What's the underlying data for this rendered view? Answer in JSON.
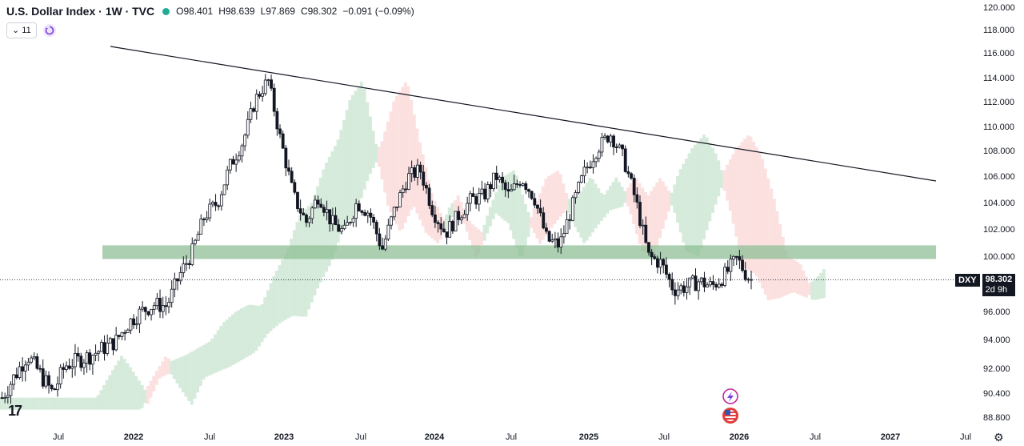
{
  "header": {
    "title": "U.S. Dollar Index · 1W · TVC",
    "open_label": "O",
    "open": "98.401",
    "high_label": "H",
    "high": "98.639",
    "low_label": "L",
    "low": "97.869",
    "close_label": "C",
    "close": "98.302",
    "change": "−0.091 (−0.09%)",
    "status_color": "#22ab94"
  },
  "toolbar": {
    "indicator_count": "11",
    "chevron_icon": "chevron-down-icon",
    "sync_icon": "sync-icon"
  },
  "price_tag": {
    "symbol": "DXY",
    "price": "98.302",
    "countdown": "2d 9h"
  },
  "logo": {
    "text": "17"
  },
  "settings_icon": "gear-icon",
  "chart_data": {
    "type": "candlestick",
    "interval": "1W",
    "y_axis_labels": [
      "120.000",
      "118.000",
      "116.000",
      "114.000",
      "112.000",
      "110.000",
      "108.000",
      "106.000",
      "104.000",
      "102.000",
      "100.000",
      "96.000",
      "94.000",
      "92.000",
      "90.400",
      "88.800"
    ],
    "x_axis_labels": [
      "Jul",
      "2022",
      "Jul",
      "2023",
      "Jul",
      "2024",
      "Jul",
      "2025",
      "Jul",
      "2026",
      "Jul",
      "2027",
      "Jul"
    ],
    "last_price": 98.302,
    "colors": {
      "up": "#131722",
      "down": "#131722",
      "cloud_bull": "#cfe8d5",
      "cloud_bear": "#fbdcdc",
      "zone": "#8fbf96"
    },
    "support_zone": {
      "low": 99.8,
      "high": 100.8,
      "start": "2021-11",
      "end": "2027-05"
    },
    "trendline": {
      "points": [
        [
          "2021-11",
          116.5
        ],
        [
          "2027-05",
          105.7
        ]
      ]
    },
    "price_path": [
      [
        "2021-01",
        90.1
      ],
      [
        "2021-02",
        91.5
      ],
      [
        "2021-03",
        92.9
      ],
      [
        "2021-05",
        90.4
      ],
      [
        "2021-06",
        92.2
      ],
      [
        "2021-08",
        92.9
      ],
      [
        "2021-10",
        93.9
      ],
      [
        "2021-11",
        95.2
      ],
      [
        "2021-12",
        96.0
      ],
      [
        "2022-01",
        96.5
      ],
      [
        "2022-02",
        96.4
      ],
      [
        "2022-03",
        98.6
      ],
      [
        "2022-04",
        100.3
      ],
      [
        "2022-05",
        103.0
      ],
      [
        "2022-06",
        104.0
      ],
      [
        "2022-07",
        106.8
      ],
      [
        "2022-08",
        108.7
      ],
      [
        "2022-09",
        112.2
      ],
      [
        "2022-10",
        113.8
      ],
      [
        "2022-11",
        108.8
      ],
      [
        "2022-12",
        104.5
      ],
      [
        "2023-01",
        102.5
      ],
      [
        "2023-02",
        104.6
      ],
      [
        "2023-03",
        102.5
      ],
      [
        "2023-04",
        101.7
      ],
      [
        "2023-05",
        104.0
      ],
      [
        "2023-06",
        103.2
      ],
      [
        "2023-07",
        100.5
      ],
      [
        "2023-08",
        103.5
      ],
      [
        "2023-09",
        105.9
      ],
      [
        "2023-10",
        106.5
      ],
      [
        "2023-11",
        103.4
      ],
      [
        "2023-12",
        101.7
      ],
      [
        "2024-01",
        103.0
      ],
      [
        "2024-02",
        104.2
      ],
      [
        "2024-03",
        104.5
      ],
      [
        "2024-04",
        106.0
      ],
      [
        "2024-05",
        104.5
      ],
      [
        "2024-06",
        105.9
      ],
      [
        "2024-07",
        104.4
      ],
      [
        "2024-08",
        101.2
      ],
      [
        "2024-09",
        100.8
      ],
      [
        "2024-10",
        103.7
      ],
      [
        "2024-11",
        106.4
      ],
      [
        "2024-12",
        108.2
      ],
      [
        "2025-01",
        109.4
      ],
      [
        "2025-02",
        107.5
      ],
      [
        "2025-03",
        104.2
      ],
      [
        "2025-04",
        100.0
      ],
      [
        "2025-05",
        99.5
      ],
      [
        "2025-06",
        97.6
      ],
      [
        "2025-07",
        97.8
      ],
      [
        "2025-08",
        98.2
      ],
      [
        "2025-09",
        97.8
      ],
      [
        "2025-10",
        98.6
      ],
      [
        "2025-11",
        99.8
      ],
      [
        "2025-12",
        98.3
      ]
    ]
  }
}
